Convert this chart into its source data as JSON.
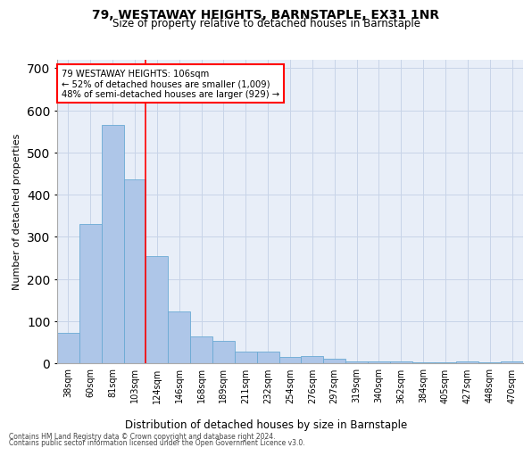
{
  "title": "79, WESTAWAY HEIGHTS, BARNSTAPLE, EX31 1NR",
  "subtitle": "Size of property relative to detached houses in Barnstaple",
  "xlabel": "Distribution of detached houses by size in Barnstaple",
  "ylabel": "Number of detached properties",
  "categories": [
    "38sqm",
    "60sqm",
    "81sqm",
    "103sqm",
    "124sqm",
    "146sqm",
    "168sqm",
    "189sqm",
    "211sqm",
    "232sqm",
    "254sqm",
    "276sqm",
    "297sqm",
    "319sqm",
    "340sqm",
    "362sqm",
    "384sqm",
    "405sqm",
    "427sqm",
    "448sqm",
    "470sqm"
  ],
  "values": [
    73,
    330,
    565,
    437,
    255,
    123,
    63,
    52,
    28,
    27,
    15,
    17,
    11,
    5,
    5,
    4,
    2,
    2,
    5,
    2,
    4
  ],
  "bar_color": "#aec6e8",
  "bar_edgecolor": "#6aaad4",
  "bar_linewidth": 0.6,
  "red_line_x": 3.5,
  "annotation_line1": "79 WESTAWAY HEIGHTS: 106sqm",
  "annotation_line2": "← 52% of detached houses are smaller (1,009)",
  "annotation_line3": "48% of semi-detached houses are larger (929) →",
  "annotation_box_color": "white",
  "annotation_box_edgecolor": "red",
  "grid_color": "#c8d4e8",
  "background_color": "#e8eef8",
  "ylim": [
    0,
    720
  ],
  "yticks": [
    0,
    100,
    200,
    300,
    400,
    500,
    600,
    700
  ],
  "footer_line1": "Contains HM Land Registry data © Crown copyright and database right 2024.",
  "footer_line2": "Contains public sector information licensed under the Open Government Licence v3.0."
}
